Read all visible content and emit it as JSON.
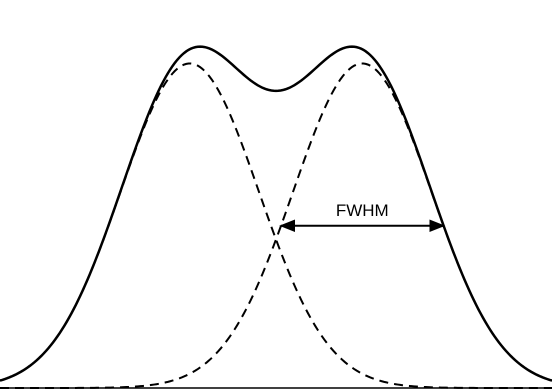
{
  "chart_data": {
    "type": "line",
    "title": "",
    "xlabel": "",
    "ylabel": "",
    "xlim": [
      -4,
      4
    ],
    "ylim": [
      0,
      1.1
    ],
    "grid": false,
    "components": [
      {
        "mu": -1.25,
        "sigma": 1.0,
        "amplitude": 0.92,
        "style": "dashed"
      },
      {
        "mu": 1.25,
        "sigma": 1.0,
        "amplitude": 0.92,
        "style": "dashed"
      }
    ],
    "sum": {
      "style": "solid"
    },
    "annotation": {
      "label": "FWHM",
      "half_width": 1.18,
      "component": 1,
      "style": "double-arrow"
    },
    "colors": {
      "line": "#000000",
      "background": "#ffffff"
    }
  }
}
